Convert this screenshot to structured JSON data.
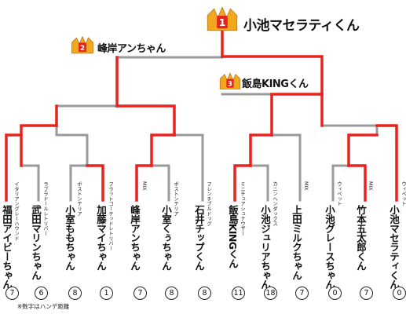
{
  "winners": [
    {
      "rank": "1",
      "name": "小池マセラティくん"
    },
    {
      "rank": "2",
      "name": "峰岸アンちゃん"
    },
    {
      "rank": "3",
      "name": "飯島KINGくん"
    }
  ],
  "players": [
    {
      "breed": "イタリアングレーハウンド",
      "name": "福田アイビーちゃん",
      "score": "7"
    },
    {
      "breed": "ラブラドールレトリバー",
      "name": "武田マリンちゃん",
      "score": "6"
    },
    {
      "breed": "ボストンテリア",
      "name": "小室ももちゃん",
      "score": "8"
    },
    {
      "breed": "フラットコーテッドレトリバー",
      "name": "加藤マイちゃん",
      "score": "1"
    },
    {
      "breed": "MIX",
      "name": "峰岸アンちゃん",
      "score": "7"
    },
    {
      "breed": "ボストンテリア",
      "name": "小室くぅちゃん",
      "score": "8"
    },
    {
      "breed": "フレンチブルドッグ",
      "name": "石井チップくん",
      "score": "8"
    },
    {
      "breed": "ミニチュアシュナウザー",
      "name": "飯島KINGくん",
      "score": "11"
    },
    {
      "breed": "カニンヘンダックス",
      "name": "小池ジュリアちゃん",
      "score": "18"
    },
    {
      "breed": "MIX",
      "name": "上田ミルクちゃん",
      "score": "7"
    },
    {
      "breed": "ウィペット",
      "name": "小池グレースちゃん",
      "score": "0"
    },
    {
      "breed": "MIX",
      "name": "竹本五太郎くん",
      "score": "7"
    },
    {
      "breed": "ウィペット",
      "name": "小池マセラティくん",
      "score": "0"
    }
  ],
  "footnote": "※数字はハンデ距離",
  "colors": {
    "win_line": "#e8231e",
    "lose_line": "#9a9a9a",
    "crown": "#f2a81d",
    "crown_badge": "#e8231e"
  }
}
